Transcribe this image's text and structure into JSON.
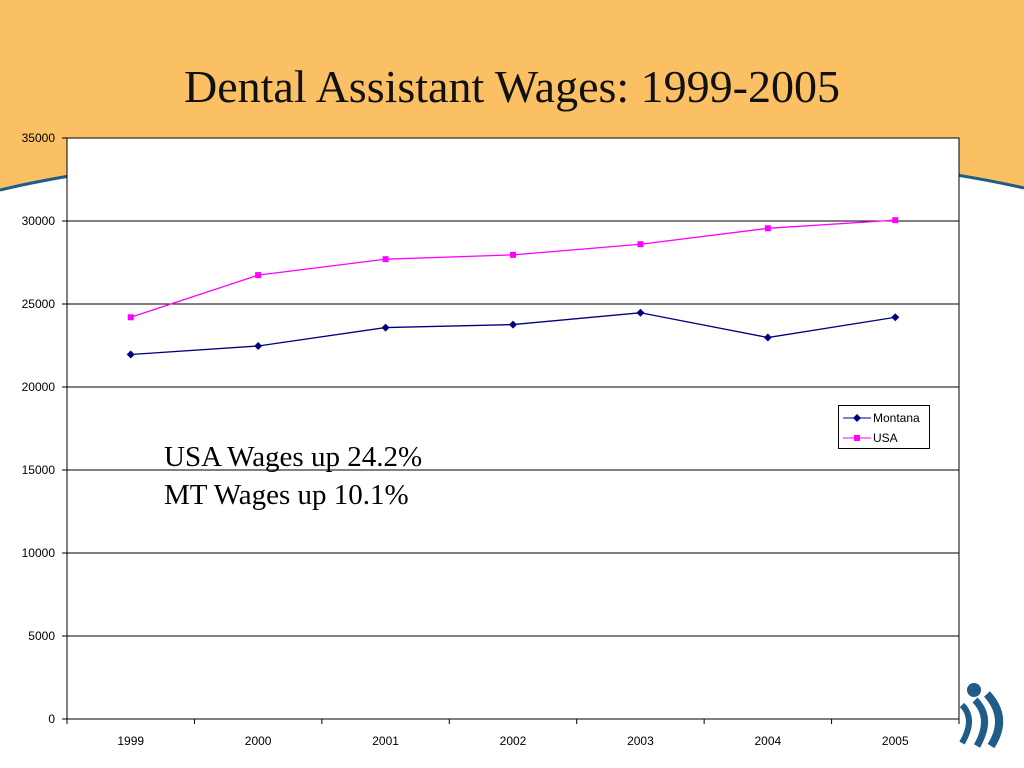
{
  "slide": {
    "title": "Dental Assistant Wages: 1999-2005",
    "annotation_lines": [
      "USA Wages up 24.2%",
      "MT Wages up 10.1%"
    ],
    "background_color": "#ffffff",
    "header_band_color": "#FBC063",
    "curve_color": "#1F5C87"
  },
  "chart_data": {
    "type": "line",
    "x": [
      "1999",
      "2000",
      "2001",
      "2002",
      "2003",
      "2004",
      "2005"
    ],
    "series": [
      {
        "name": "Montana",
        "values": [
          21960,
          22470,
          23580,
          23760,
          24470,
          22980,
          24200
        ],
        "color": "#000080",
        "marker": "diamond"
      },
      {
        "name": "USA",
        "values": [
          24200,
          26740,
          27700,
          27960,
          28600,
          29560,
          30050
        ],
        "color": "#FF00FF",
        "marker": "square"
      }
    ],
    "yticks": [
      "0",
      "5000",
      "10000",
      "15000",
      "20000",
      "25000",
      "30000",
      "35000"
    ],
    "ylim": [
      0,
      35000
    ],
    "xlabel": "",
    "ylabel": "",
    "grid": "horizontal",
    "legend_position": "right"
  }
}
